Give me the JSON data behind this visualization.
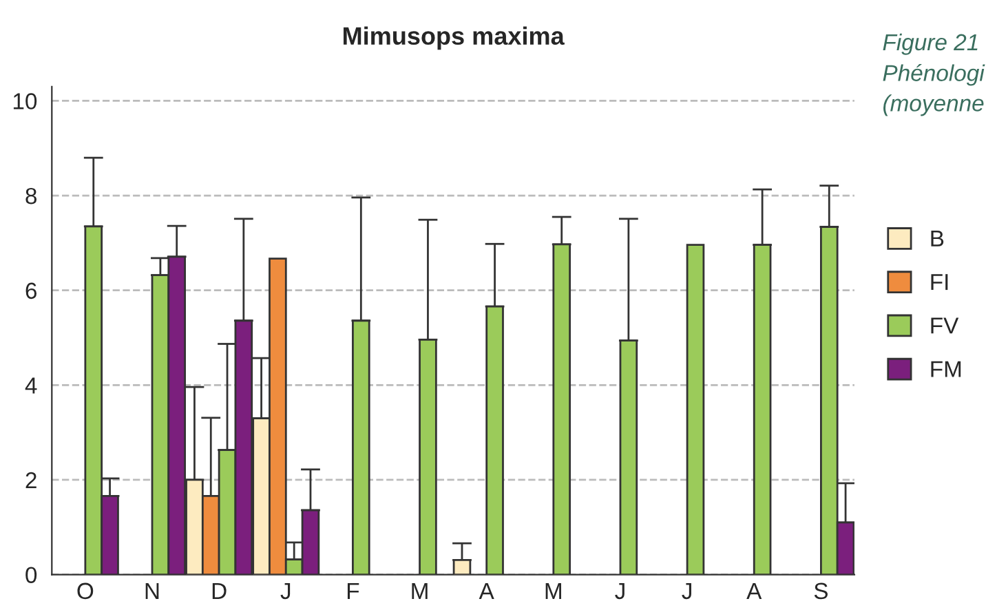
{
  "chart_data": {
    "type": "bar",
    "title": "Mimusops maxima",
    "categories": [
      "O",
      "N",
      "D",
      "J",
      "F",
      "M",
      "A",
      "M",
      "J",
      "J",
      "A",
      "S"
    ],
    "series": [
      {
        "name": "B",
        "color": "#fdebc0",
        "values": [
          null,
          null,
          2.0,
          3.3,
          null,
          null,
          0.31,
          null,
          null,
          null,
          null,
          null
        ],
        "errors": [
          null,
          null,
          [
            2.0,
            3.96
          ],
          [
            3.3,
            4.57
          ],
          null,
          null,
          [
            0.31,
            0.66
          ],
          null,
          null,
          null,
          null,
          null
        ]
      },
      {
        "name": "FI",
        "color": "#ef8c3e",
        "values": [
          null,
          null,
          1.66,
          6.67,
          null,
          null,
          null,
          null,
          null,
          null,
          null,
          null
        ],
        "errors": [
          null,
          null,
          [
            1.66,
            3.31
          ],
          null,
          null,
          null,
          null,
          null,
          null,
          null,
          null,
          null
        ]
      },
      {
        "name": "FV",
        "color": "#9bcb5a",
        "values": [
          7.35,
          6.32,
          2.63,
          0.32,
          5.36,
          4.96,
          5.66,
          6.97,
          4.94,
          6.96,
          6.96,
          7.34
        ],
        "errors": [
          [
            7.35,
            8.8
          ],
          [
            6.32,
            6.68
          ],
          [
            2.63,
            4.87
          ],
          [
            0.32,
            0.68
          ],
          [
            5.36,
            7.96
          ],
          [
            4.96,
            7.49
          ],
          [
            5.66,
            6.98
          ],
          [
            6.97,
            7.55
          ],
          [
            4.94,
            7.51
          ],
          null,
          [
            6.96,
            8.13
          ],
          [
            7.34,
            8.21
          ]
        ]
      },
      {
        "name": "FM",
        "color": "#7b1f7d",
        "values": [
          1.66,
          6.71,
          5.36,
          1.36,
          null,
          null,
          null,
          null,
          null,
          null,
          null,
          1.1
        ],
        "errors": [
          [
            1.66,
            2.03
          ],
          [
            6.71,
            7.36
          ],
          [
            5.36,
            7.51
          ],
          [
            1.36,
            2.22
          ],
          null,
          null,
          null,
          null,
          null,
          null,
          null,
          [
            1.1,
            1.93
          ]
        ]
      }
    ],
    "ylim": [
      0,
      10.3
    ],
    "yticks": [
      0,
      2,
      4,
      6,
      8,
      10
    ],
    "grid": "y",
    "legend": "right",
    "annotations": [
      "Figure 21",
      "Phénologi",
      "(moyenne"
    ]
  }
}
